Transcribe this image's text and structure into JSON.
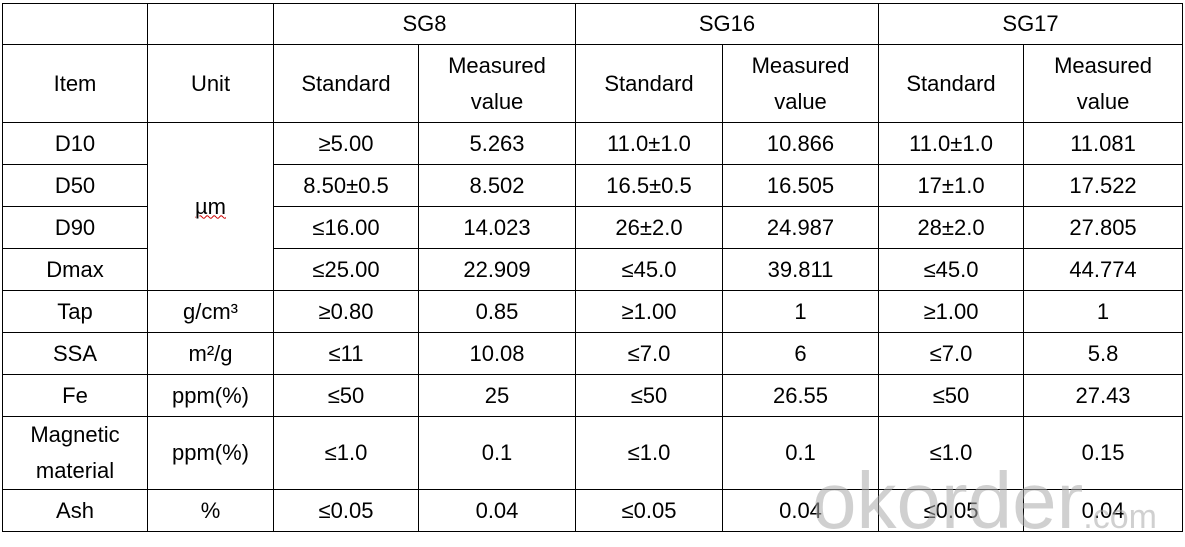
{
  "table": {
    "groups": [
      "SG8",
      "SG16",
      "SG17"
    ],
    "columns": [
      "Item",
      "Unit",
      "Standard",
      "Measured value",
      "Standard",
      "Measured value",
      "Standard",
      "Measured value"
    ],
    "rows": [
      {
        "item": "D10",
        "unit": "µm",
        "cells": [
          "≥5.00",
          "5.263",
          "11.0±1.0",
          "10.866",
          "11.0±1.0",
          "11.081"
        ]
      },
      {
        "item": "D50",
        "unit": null,
        "cells": [
          "8.50±0.5",
          "8.502",
          "16.5±0.5",
          "16.505",
          "17±1.0",
          "17.522"
        ]
      },
      {
        "item": "D90",
        "unit": null,
        "cells": [
          "≤16.00",
          "14.023",
          "26±2.0",
          "24.987",
          "28±2.0",
          "27.805"
        ]
      },
      {
        "item": "Dmax",
        "unit": null,
        "cells": [
          "≤25.00",
          "22.909",
          "≤45.0",
          "39.811",
          "≤45.0",
          "44.774"
        ]
      },
      {
        "item": "Tap",
        "unit": "g/cm³",
        "cells": [
          "≥0.80",
          "0.85",
          "≥1.00",
          "1",
          "≥1.00",
          "1"
        ]
      },
      {
        "item": "SSA",
        "unit": "m²/g",
        "cells": [
          "≤11",
          "10.08",
          "≤7.0",
          "6",
          "≤7.0",
          "5.8"
        ]
      },
      {
        "item": "Fe",
        "unit": "ppm(%)",
        "cells": [
          "≤50",
          "25",
          "≤50",
          "26.55",
          "≤50",
          "27.43"
        ]
      },
      {
        "item": "Magnetic material",
        "unit": "ppm(%)",
        "cells": [
          "≤1.0",
          "0.1",
          "≤1.0",
          "0.1",
          "≤1.0",
          "0.15"
        ]
      },
      {
        "item": "Ash",
        "unit": "%",
        "cells": [
          "≤0.05",
          "0.04",
          "≤0.05",
          "0.04",
          "≤0.05",
          "0.04"
        ]
      }
    ]
  },
  "watermark": {
    "main": "okorder",
    "suffix": ".com"
  }
}
